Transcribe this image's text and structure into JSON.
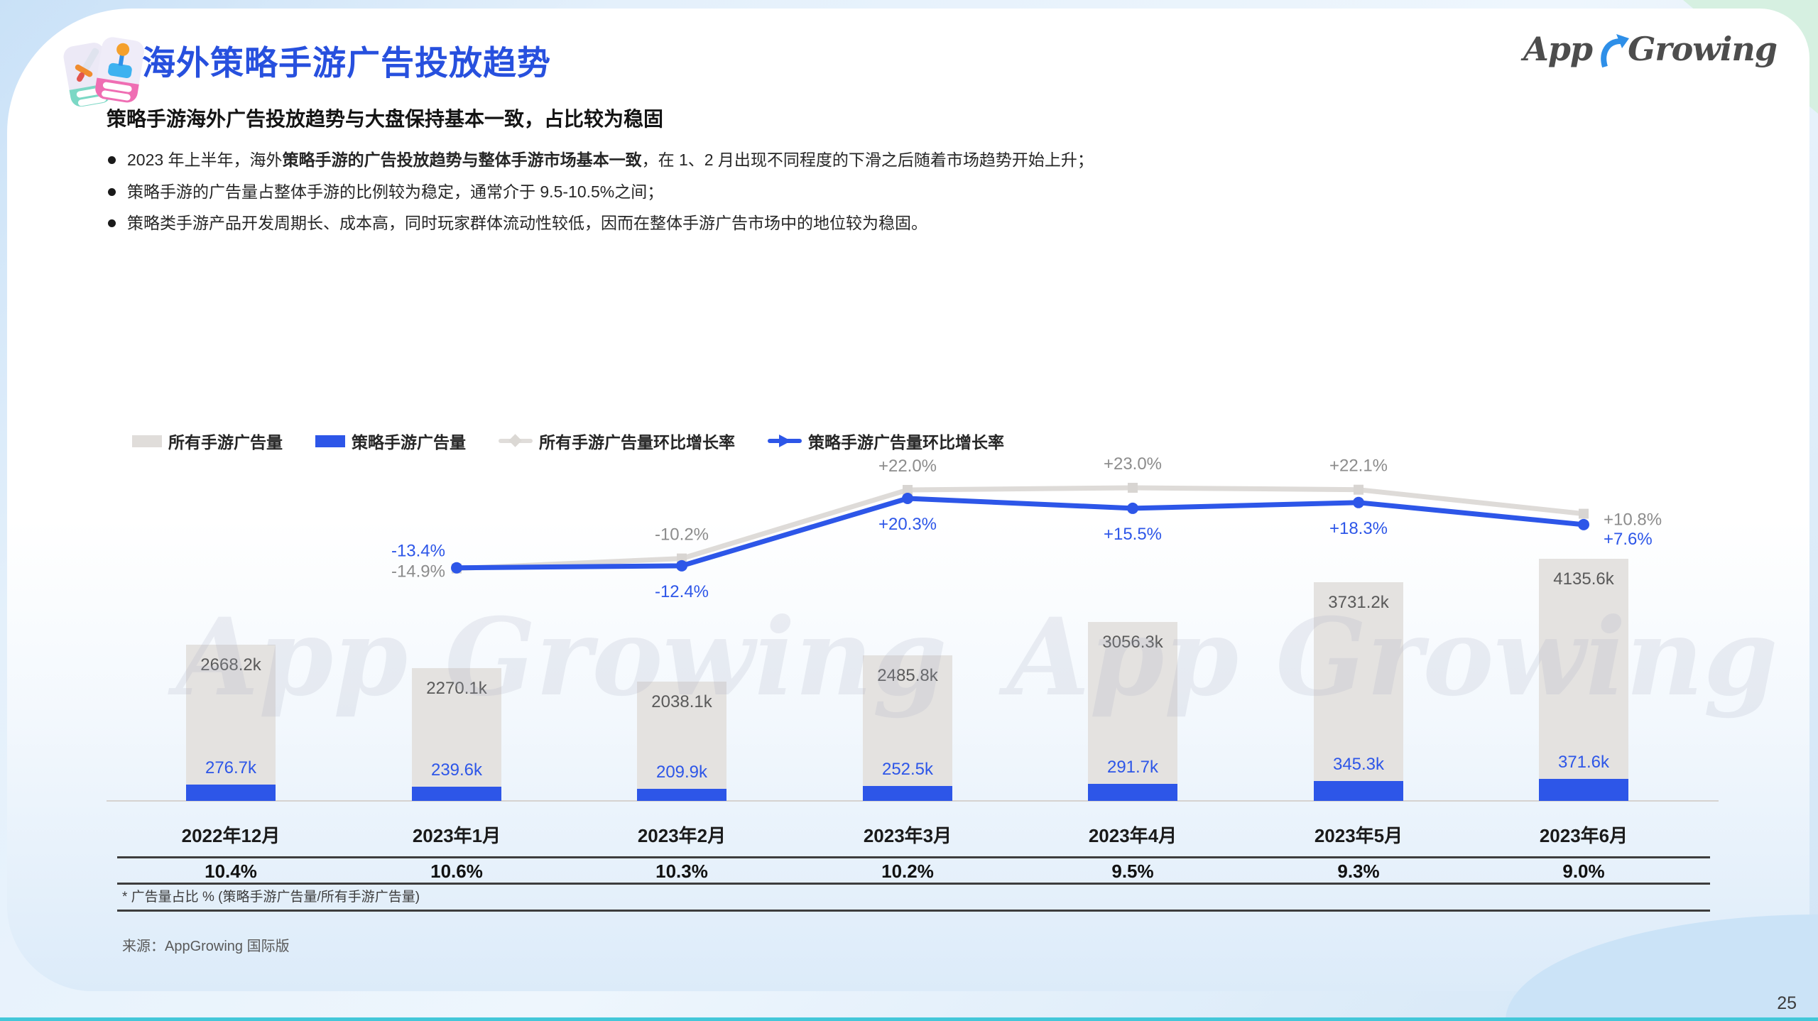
{
  "slide": {
    "title": "海外策略手游广告投放趋势",
    "logo_text": {
      "part1": "App",
      "part2": "Growing"
    },
    "subtitle": "策略手游海外广告投放趋势与大盘保持基本一致，占比较为稳固",
    "bullets": [
      {
        "pre": "2023 年上半年，海外",
        "bold": "策略手游的广告投放趋势与整体手游市场基本一致",
        "post": "，在 1、2 月出现不同程度的下滑之后随着市场趋势开始上升；"
      },
      {
        "pre": "策略手游的广告量占整体手游的比例较为稳定，通常介于 9.5-10.5%之间；",
        "bold": "",
        "post": ""
      },
      {
        "pre": "策略类手游产品开发周期长、成本高，同时玩家群体流动性较低，因而在整体手游广告市场中的地位较为稳固。",
        "bold": "",
        "post": ""
      }
    ],
    "footnote": "* 广告量占比 %  (策略手游广告量/所有手游广告量)",
    "source": "来源：AppGrowing 国际版",
    "page_number": "25",
    "watermark": "App Growing"
  },
  "colors": {
    "title_blue": "#2750de",
    "accent_blue": "#2d56e8",
    "bar_gray": "#e4e2e0",
    "line_gray": "#dedbd8",
    "gray_label": "#8c8c8c",
    "bar_value_gray": "#595959",
    "logo_arrow_blue": "#2e8fe8",
    "bottom_teal": "#43c7d9"
  },
  "chart_data": {
    "type": "bar+line combo",
    "title": "海外策略手游广告投放趋势",
    "categories": [
      "2022年12月",
      "2023年1月",
      "2023年2月",
      "2023年3月",
      "2023年4月",
      "2023年5月",
      "2023年6月"
    ],
    "legend": [
      "所有手游广告量",
      "策略手游广告量",
      "所有手游广告量环比增长率",
      "策略手游广告量环比增长率"
    ],
    "legend_position": "top-left",
    "grid": false,
    "series": [
      {
        "name": "所有手游广告量",
        "type": "bar",
        "color": "#e4e2e0",
        "unit": "k",
        "values_k": [
          2668.2,
          2270.1,
          2038.1,
          2485.8,
          3056.3,
          3731.2,
          4135.6
        ],
        "labels": [
          "2668.2k",
          "2270.1k",
          "2038.1k",
          "2485.8k",
          "3056.3k",
          "3731.2k",
          "4135.6k"
        ]
      },
      {
        "name": "策略手游广告量",
        "type": "bar",
        "color": "#2d56e8",
        "unit": "k",
        "values_k": [
          276.7,
          239.6,
          209.9,
          252.5,
          291.7,
          345.3,
          371.6
        ],
        "labels": [
          "276.7k",
          "239.6k",
          "209.9k",
          "252.5k",
          "291.7k",
          "345.3k",
          "371.6k"
        ]
      },
      {
        "name": "所有手游广告量环比增长率",
        "type": "line",
        "color": "#dedbd8",
        "unit": "%",
        "values_pct": [
          null,
          -14.9,
          -10.2,
          22.0,
          23.0,
          22.1,
          10.8
        ],
        "labels": [
          "-14.9%",
          "-10.2%",
          "+22.0%",
          "+23.0%",
          "+22.1%",
          "+10.8%"
        ]
      },
      {
        "name": "策略手游广告量环比增长率",
        "type": "line",
        "color": "#2d56e8",
        "unit": "%",
        "values_pct": [
          null,
          -13.4,
          -12.4,
          20.3,
          15.5,
          18.3,
          7.6
        ],
        "labels": [
          "-13.4%",
          "-12.4%",
          "+20.3%",
          "+15.5%",
          "+18.3%",
          "+7.6%"
        ]
      }
    ],
    "share_row": {
      "label": "广告量占比 %",
      "values": [
        "10.4%",
        "10.6%",
        "10.3%",
        "10.2%",
        "9.5%",
        "9.3%",
        "9.0%"
      ]
    }
  }
}
